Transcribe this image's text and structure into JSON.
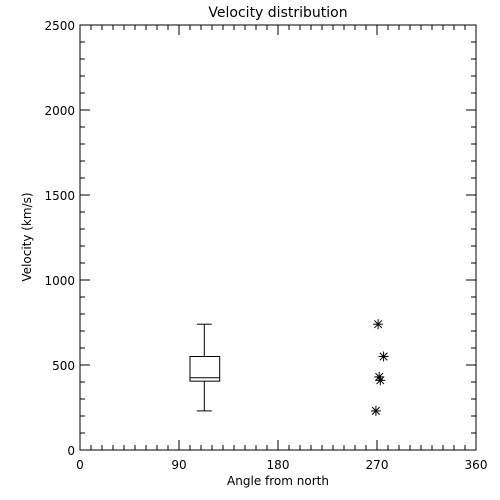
{
  "chart_data": {
    "type": "box_scatter",
    "title": "Velocity distribution",
    "xlabel": "Angle from north",
    "ylabel": "Velocity (km/s)",
    "xlim": [
      0,
      360
    ],
    "ylim": [
      0,
      2500
    ],
    "xticks": [
      0,
      90,
      180,
      270,
      360
    ],
    "xtick_labels": [
      "0",
      "90",
      "180",
      "270",
      "360"
    ],
    "x_minor_step": 10,
    "yticks": [
      0,
      500,
      1000,
      1500,
      2000,
      2500
    ],
    "ytick_labels": [
      "0",
      "500",
      "1000",
      "1500",
      "2000",
      "2500"
    ],
    "y_minor_step": 100,
    "grid": false,
    "box": {
      "center_x": 113,
      "x_from": 100,
      "x_to": 127,
      "whisker_low": 230,
      "q1": 405,
      "median": 425,
      "q3": 550,
      "whisker_high": 740
    },
    "points": [
      {
        "x": 271,
        "y": 740
      },
      {
        "x": 276,
        "y": 550
      },
      {
        "x": 272,
        "y": 430
      },
      {
        "x": 273,
        "y": 410
      },
      {
        "x": 269,
        "y": 230
      }
    ]
  }
}
